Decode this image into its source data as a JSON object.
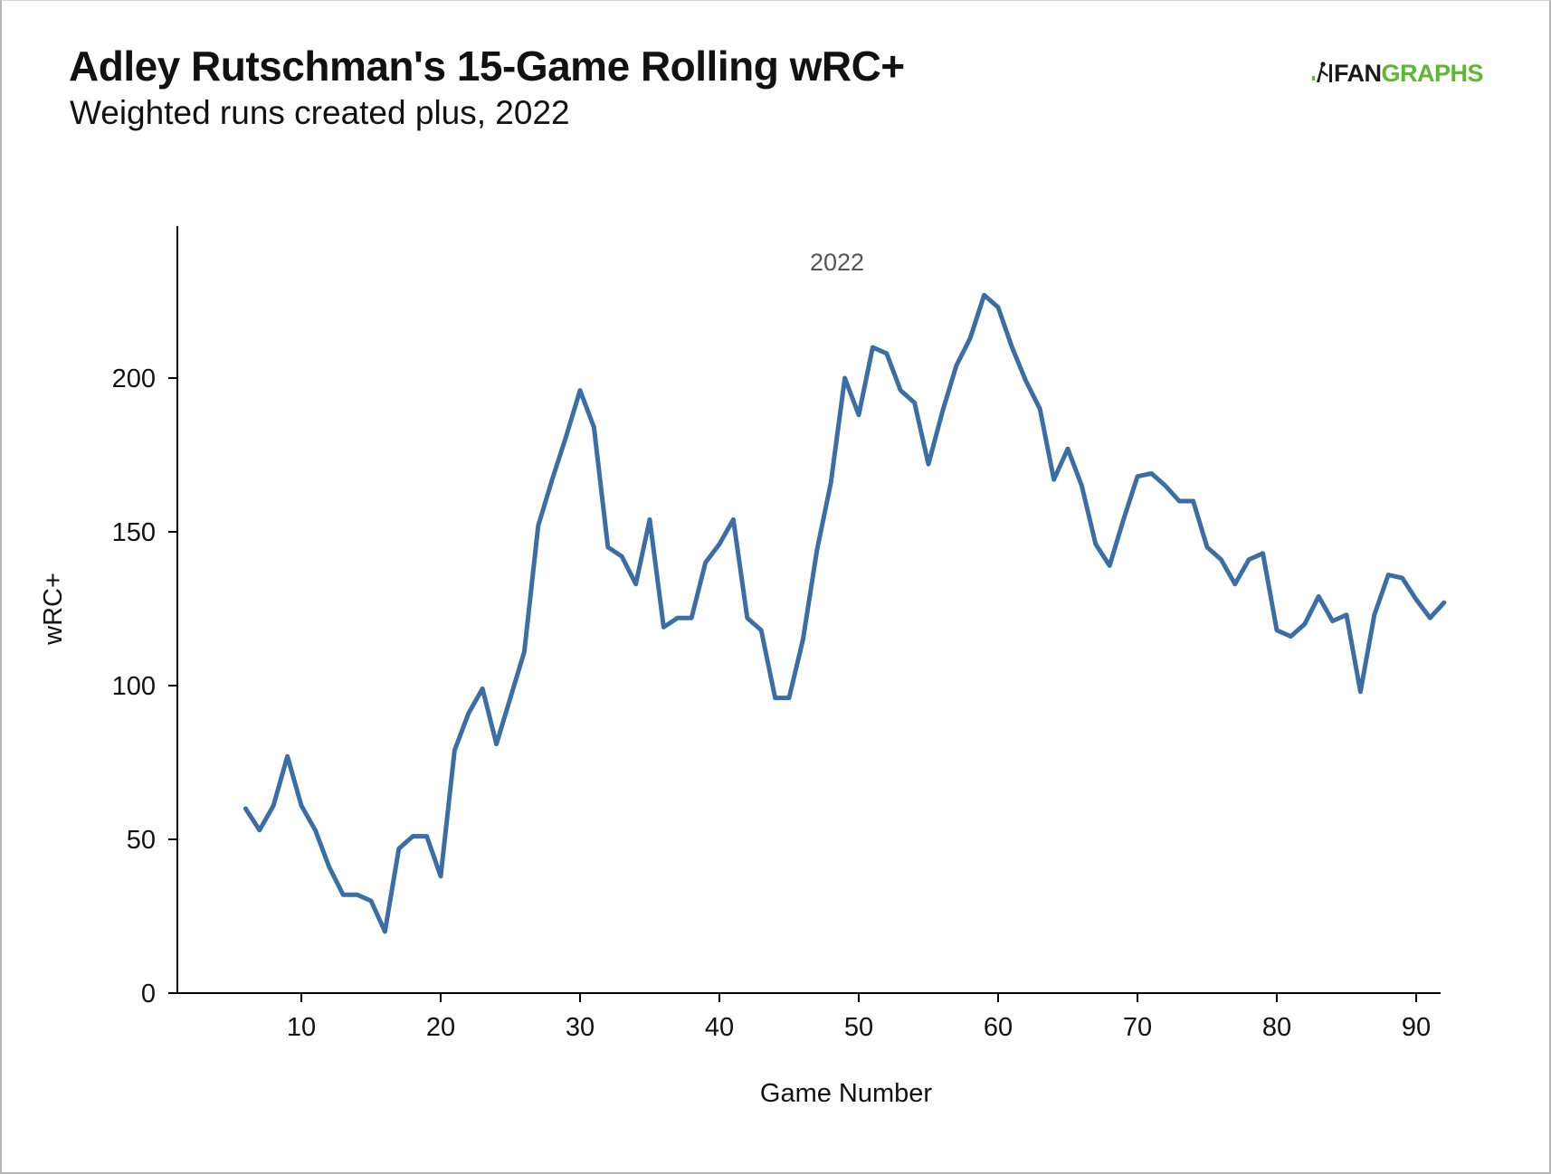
{
  "header": {
    "title": "Adley Rutschman's 15-Game Rolling wRC+",
    "subtitle": "Weighted runs created plus, 2022",
    "logo_prefix": "FAN",
    "logo_suffix": "GRAPHS"
  },
  "colors": {
    "line": "#3a6ea5",
    "logo_green": "#5fb832",
    "text": "#111111"
  },
  "chart_data": {
    "type": "line",
    "title": "Adley Rutschman's 15-Game Rolling wRC+",
    "subtitle": "Weighted runs created plus, 2022",
    "facet_label": "2022",
    "xlabel": "Game Number",
    "ylabel": "wRC+",
    "xlim": [
      1,
      94
    ],
    "ylim": [
      0,
      250
    ],
    "xticks": [
      10,
      20,
      30,
      40,
      50,
      60,
      70,
      80,
      90
    ],
    "yticks": [
      0,
      50,
      100,
      150,
      200
    ],
    "grid": false,
    "legend": "none",
    "series": [
      {
        "x": [
          6,
          7,
          8,
          9,
          10,
          11,
          12,
          13,
          14,
          15,
          16,
          17,
          18,
          19,
          20,
          21,
          22,
          23,
          24,
          25,
          26,
          27,
          28,
          29,
          30,
          31,
          32,
          33,
          34,
          35,
          36,
          37,
          38,
          39,
          40,
          41,
          42,
          43,
          44,
          45,
          46,
          47,
          48,
          49,
          50,
          51,
          52,
          53,
          54,
          55,
          56,
          57,
          58,
          59,
          60,
          61,
          62,
          63,
          64,
          65,
          66,
          67,
          68,
          69,
          70,
          71,
          72,
          73,
          74,
          75,
          76,
          77,
          78,
          79,
          80,
          81,
          82,
          83,
          84,
          85,
          86,
          87,
          88,
          89,
          90,
          91,
          92
        ],
        "values": [
          60,
          53,
          61,
          77,
          61,
          53,
          41,
          32,
          32,
          30,
          20,
          47,
          51,
          51,
          38,
          79,
          91,
          99,
          81,
          96,
          111,
          152,
          167,
          181,
          196,
          184,
          145,
          142,
          133,
          154,
          119,
          122,
          122,
          140,
          146,
          154,
          122,
          118,
          96,
          96,
          115,
          144,
          166,
          200,
          188,
          210,
          208,
          196,
          192,
          172,
          189,
          204,
          213,
          227,
          223,
          210,
          199,
          190,
          167,
          177,
          165,
          146,
          139,
          154,
          168,
          169,
          165,
          160,
          160,
          145,
          141,
          133,
          141,
          143,
          118,
          116,
          120,
          129,
          121,
          123,
          98,
          123,
          136,
          135,
          128,
          122,
          127
        ]
      }
    ]
  }
}
